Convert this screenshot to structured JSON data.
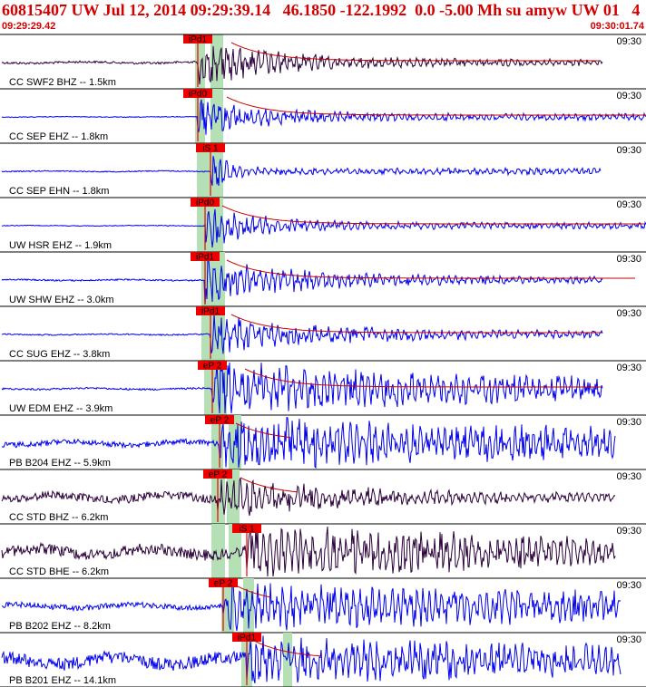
{
  "header": {
    "title": "60815407 UW Jul 12, 2014 09:29:39.14   46.1850 -122.1992  0.0 -5.00 Mh su amyw UW 01   4",
    "start_time": "09:29:29.42",
    "end_time": "09:30:01.74"
  },
  "colors": {
    "header_text": "#d40000",
    "trace_blue": "#0000ee",
    "trace_dark": "#2a003a",
    "pick_box": "#ee0000",
    "pick_window": "#b5e0b5",
    "coda_curve": "#cc0000",
    "separator": "#000000"
  },
  "chart_data": {
    "type": "seismogram",
    "x_unit": "time",
    "x_start": "09:29:29.42",
    "x_end": "09:30:01.74",
    "traces": [
      {
        "label": "CC SWF2 BHZ -- 1.5km",
        "time_label": "09:30",
        "pick": "iPd1",
        "color": "dark",
        "distance_km": 1.5
      },
      {
        "label": "CC SEP EHZ -- 1.8km",
        "time_label": "09:30",
        "pick": "iPd0",
        "color": "blue",
        "distance_km": 1.8
      },
      {
        "label": "CC SEP EHN -- 1.8km",
        "time_label": "09:30",
        "pick": "iS 1",
        "color": "blue",
        "distance_km": 1.8
      },
      {
        "label": "UW HSR EHZ -- 1.9km",
        "time_label": "09:30",
        "pick": "iPd0",
        "color": "blue",
        "distance_km": 1.9
      },
      {
        "label": "UW SHW EHZ -- 3.0km",
        "time_label": "09:30",
        "pick": "iPd1",
        "color": "blue",
        "distance_km": 3.0
      },
      {
        "label": "CC SUG EHZ -- 3.8km",
        "time_label": "09:30",
        "pick": "iPd1",
        "color": "blue",
        "distance_km": 3.8
      },
      {
        "label": "UW EDM EHZ -- 3.9km",
        "time_label": "09:30",
        "pick": "eP 2",
        "color": "blue",
        "distance_km": 3.9
      },
      {
        "label": "PB B204 EHZ -- 5.9km",
        "time_label": "09:30",
        "pick": "eP 2",
        "color": "blue",
        "distance_km": 5.9
      },
      {
        "label": "CC STD BHZ -- 6.2km",
        "time_label": "09:30",
        "pick": "eP 2",
        "color": "dark",
        "distance_km": 6.2
      },
      {
        "label": "CC STD BHE -- 6.2km",
        "time_label": "09:30",
        "pick": "iS 1",
        "color": "dark",
        "distance_km": 6.2
      },
      {
        "label": "PB B202 EHZ -- 8.2km",
        "time_label": "09:30",
        "pick": "eP 2",
        "color": "blue",
        "distance_km": 8.2
      },
      {
        "label": "PB B201 EHZ -- 14.1km",
        "time_label": "09:30",
        "pick": "iPd1",
        "color": "blue",
        "distance_km": 14.1
      }
    ]
  }
}
